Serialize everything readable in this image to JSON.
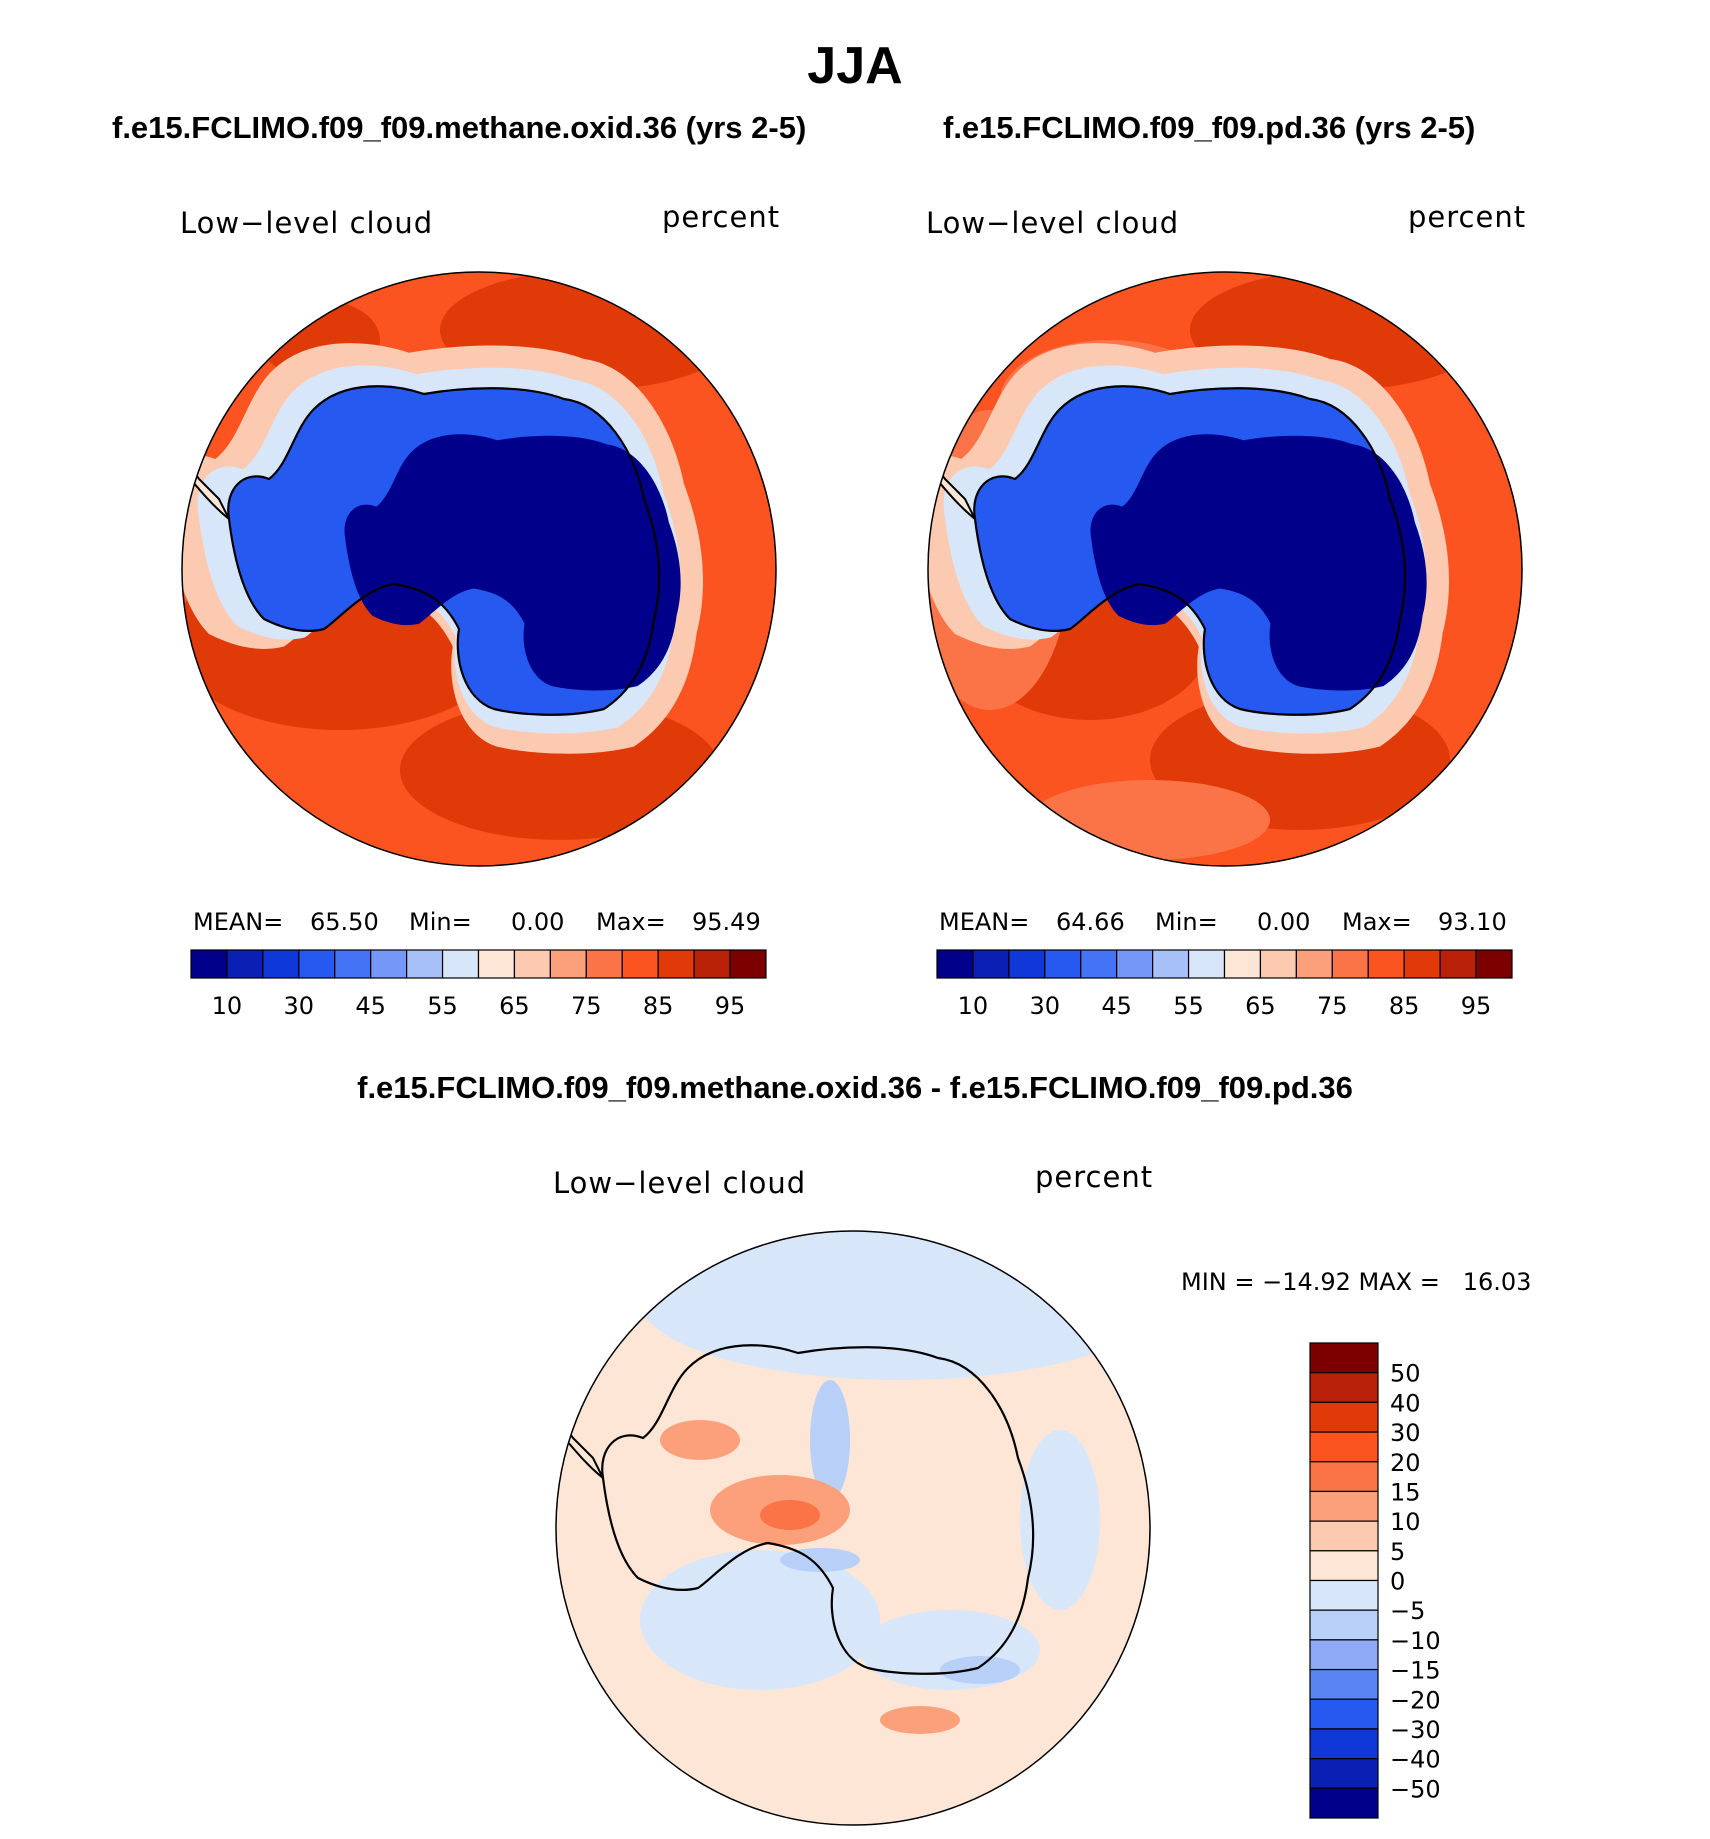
{
  "season": "JJA",
  "panels": {
    "left": {
      "title": "f.e15.FCLIMO.f09_f09.methane.oxid.36 (yrs 2-5)",
      "variable": "Low−level cloud",
      "units": "percent",
      "stats": {
        "mean_label": "MEAN=",
        "mean": "65.50",
        "min_label": "Min=",
        "min": "0.00",
        "max_label": "Max=",
        "max": "95.49"
      }
    },
    "right": {
      "title": "f.e15.FCLIMO.f09_f09.pd.36 (yrs 2-5)",
      "variable": "Low−level cloud",
      "units": "percent",
      "stats": {
        "mean_label": "MEAN=",
        "mean": "64.66",
        "min_label": "Min=",
        "min": "0.00",
        "max_label": "Max=",
        "max": "93.10"
      }
    },
    "diff": {
      "title": "f.e15.FCLIMO.f09_f09.methane.oxid.36 - f.e15.FCLIMO.f09_f09.pd.36",
      "variable": "Low−level cloud",
      "units": "percent",
      "stats_text": "MIN = −14.92 MAX =   16.03"
    }
  },
  "chart_data": [
    {
      "type": "heatmap",
      "projection": "south-polar-stereographic",
      "title": "f.e15.FCLIMO.f09_f09.methane.oxid.36 (yrs 2-5)",
      "variable": "Low−level cloud",
      "units": "percent",
      "mean": 65.5,
      "min": 0.0,
      "max": 95.49,
      "colorbar_orientation": "horizontal",
      "colorbar_colors": [
        "#00008b",
        "#0a1fb4",
        "#1038d8",
        "#2659f0",
        "#4474f5",
        "#7597f7",
        "#a8c0f8",
        "#d8e6fa",
        "#fde6d6",
        "#fccab1",
        "#fba07a",
        "#fa7447",
        "#fb5420",
        "#e03a09",
        "#b82008",
        "#7d0000"
      ],
      "colorbar_tick_labels": [
        "10",
        "30",
        "45",
        "55",
        "65",
        "75",
        "85",
        "95"
      ]
    },
    {
      "type": "heatmap",
      "projection": "south-polar-stereographic",
      "title": "f.e15.FCLIMO.f09_f09.pd.36 (yrs 2-5)",
      "variable": "Low−level cloud",
      "units": "percent",
      "mean": 64.66,
      "min": 0.0,
      "max": 93.1,
      "colorbar_orientation": "horizontal",
      "colorbar_colors": [
        "#00008b",
        "#0a1fb4",
        "#1038d8",
        "#2659f0",
        "#4474f5",
        "#7597f7",
        "#a8c0f8",
        "#d8e6fa",
        "#fde6d6",
        "#fccab1",
        "#fba07a",
        "#fa7447",
        "#fb5420",
        "#e03a09",
        "#b82008",
        "#7d0000"
      ],
      "colorbar_tick_labels": [
        "10",
        "30",
        "45",
        "55",
        "65",
        "75",
        "85",
        "95"
      ]
    },
    {
      "type": "heatmap",
      "projection": "south-polar-stereographic",
      "title": "f.e15.FCLIMO.f09_f09.methane.oxid.36 - f.e15.FCLIMO.f09_f09.pd.36",
      "variable": "Low−level cloud",
      "units": "percent",
      "min": -14.92,
      "max": 16.03,
      "colorbar_orientation": "vertical",
      "colorbar_colors_top_to_bottom": [
        "#7d0000",
        "#b82008",
        "#e03a09",
        "#fb5420",
        "#fa7447",
        "#fba07a",
        "#fccab1",
        "#fde6d6",
        "#d8e6fa",
        "#b8cff8",
        "#8eaaf7",
        "#5a84f2",
        "#2659f0",
        "#1038d8",
        "#0a1fb4",
        "#00008b"
      ],
      "colorbar_tick_labels": [
        "50",
        "40",
        "30",
        "20",
        "15",
        "10",
        "5",
        "0",
        "−5",
        "−10",
        "−15",
        "−20",
        "−30",
        "−40",
        "−50"
      ]
    }
  ]
}
